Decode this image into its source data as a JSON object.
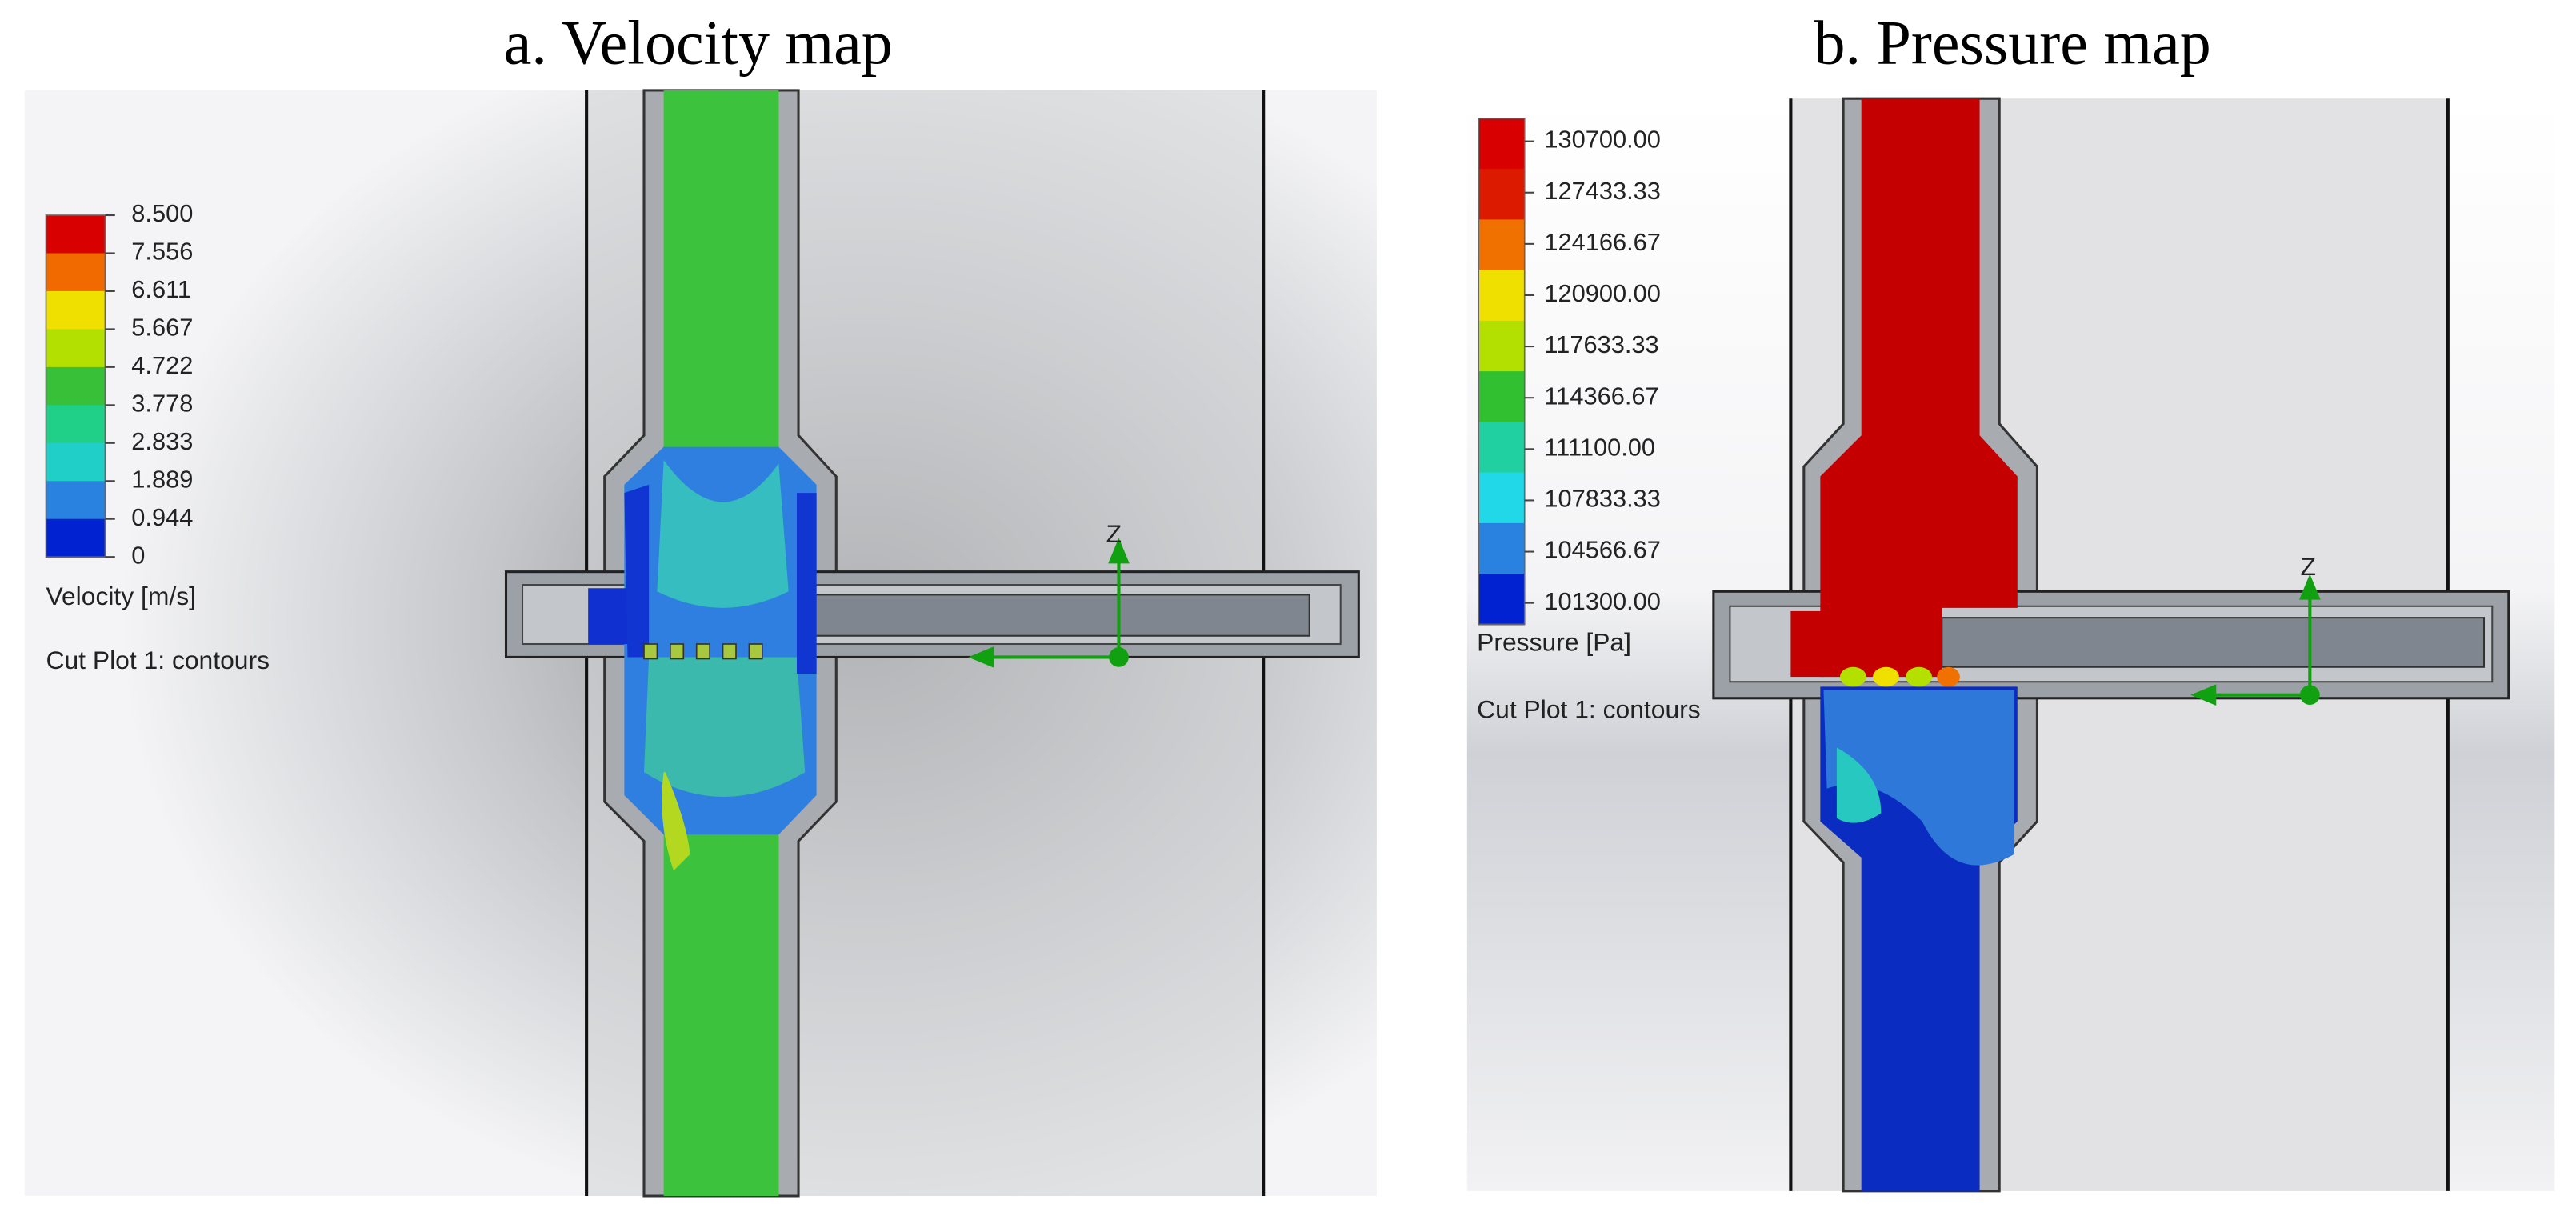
{
  "panels": [
    {
      "title": "a. Velocity map",
      "legend": {
        "labels": [
          "8.500",
          "7.556",
          "6.611",
          "5.667",
          "4.722",
          "3.778",
          "2.833",
          "1.889",
          "0.944",
          "0"
        ],
        "colors": [
          "#d80000",
          "#f06a00",
          "#f0e000",
          "#b4e000",
          "#38c038",
          "#20d088",
          "#20d0c8",
          "#2a82e0",
          "#0022d0"
        ],
        "title": "Velocity [m/s]"
      },
      "caption": "Cut Plot 1: contours",
      "axis_label": "Z"
    },
    {
      "title": "b. Pressure map",
      "legend": {
        "labels": [
          "130700.00",
          "127433.33",
          "124166.67",
          "120900.00",
          "117633.33",
          "114366.67",
          "111100.00",
          "107833.33",
          "104566.67",
          "101300.00"
        ],
        "colors": [
          "#d80000",
          "#dc1a00",
          "#f07000",
          "#f0e000",
          "#b4e000",
          "#30c030",
          "#20d0a0",
          "#20d8e8",
          "#2a82e0",
          "#0022d0"
        ],
        "title": "Pressure [Pa]"
      },
      "caption": "Cut Plot 1: contours",
      "axis_label": "Z"
    }
  ]
}
